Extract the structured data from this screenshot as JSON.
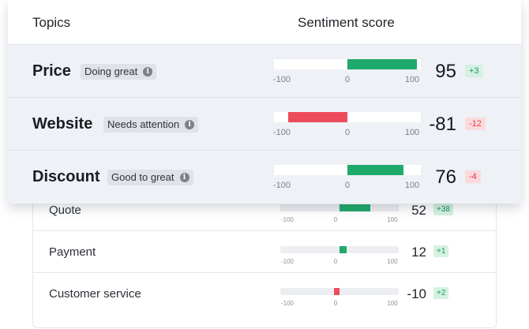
{
  "header": {
    "topics_label": "Topics",
    "score_label": "Sentiment score"
  },
  "axis": {
    "min": "-100",
    "mid": "0",
    "max": "100"
  },
  "colors": {
    "positive": "#1faa6b",
    "negative": "#ee4b5c"
  },
  "main_topics": [
    {
      "name": "Price",
      "badge": "Doing great",
      "info_icon": "info-icon",
      "score": 95,
      "score_label": "95",
      "delta": "+3",
      "delta_sign": "pos"
    },
    {
      "name": "Website",
      "badge": "Needs attention",
      "info_icon": "info-icon",
      "score": -81,
      "score_label": "-81",
      "delta": "-12",
      "delta_sign": "neg"
    },
    {
      "name": "Discount",
      "badge": "Good to great",
      "info_icon": "info-icon",
      "score": 76,
      "score_label": "76",
      "delta": "-4",
      "delta_sign": "neg"
    }
  ],
  "sub_topics": [
    {
      "name": "Quote",
      "score": 52,
      "score_label": "52",
      "delta": "+38",
      "delta_sign": "pos"
    },
    {
      "name": "Payment",
      "score": 12,
      "score_label": "12",
      "delta": "+1",
      "delta_sign": "pos"
    },
    {
      "name": "Customer service",
      "score": -10,
      "score_label": "-10",
      "delta": "+2",
      "delta_sign": "pos"
    }
  ]
}
